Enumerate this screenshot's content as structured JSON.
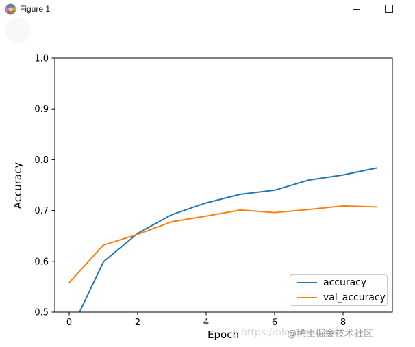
{
  "window": {
    "title": "Figure 1",
    "controls": {
      "minimize": "minimize-window",
      "maximize": "maximize-window"
    }
  },
  "chart_data": {
    "type": "line",
    "title": "",
    "xlabel": "Epoch",
    "ylabel": "Accuracy",
    "x": [
      0,
      1,
      2,
      3,
      4,
      5,
      6,
      7,
      8,
      9
    ],
    "series": [
      {
        "name": "accuracy",
        "color": "#1f77b4",
        "values": [
          0.457,
          0.599,
          0.655,
          0.692,
          0.715,
          0.732,
          0.74,
          0.76,
          0.77,
          0.784
        ]
      },
      {
        "name": "val_accuracy",
        "color": "#ff7f0e",
        "values": [
          0.558,
          0.632,
          0.653,
          0.678,
          0.689,
          0.701,
          0.696,
          0.702,
          0.709,
          0.707
        ]
      }
    ],
    "xlim": [
      -0.42,
      9.44
    ],
    "ylim": [
      0.5,
      1.0
    ],
    "xticks": [
      0,
      2,
      4,
      6,
      8
    ],
    "yticks": [
      0.5,
      0.6,
      0.7,
      0.8,
      0.9,
      1.0
    ],
    "grid": false,
    "legend_position": "lower right",
    "axis_color": "#000000"
  },
  "watermarks": {
    "url": "https://blog.csdn.net",
    "community": "@稀土掘金技术社区"
  }
}
